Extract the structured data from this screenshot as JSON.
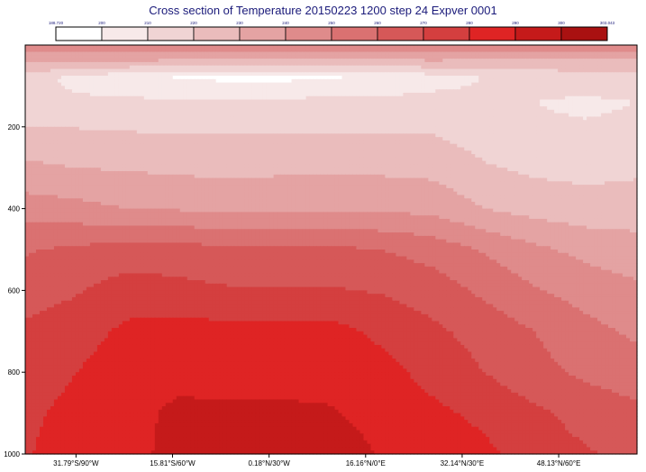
{
  "chart_data": {
    "type": "heatmap",
    "subtype": "filled-contour cross-section",
    "title": "Cross section of Temperature 20150223 1200 step 24 Expver 0001",
    "xlabel": "",
    "ylabel": "",
    "x_ticks": [
      "31.79°S/90°W",
      "15.81°S/60°W",
      "0.18°N/30°W",
      "16.16°N/0°E",
      "32.14°N/30°E",
      "48.13°N/60°E"
    ],
    "y_ticks": [
      200,
      400,
      600,
      800,
      1000
    ],
    "y_range": [
      0,
      1000
    ],
    "y_inverted": true,
    "colorbar": {
      "labels": [
        "188.720",
        "200",
        "210",
        "220",
        "230",
        "240",
        "250",
        "260",
        "270",
        "280",
        "290",
        "300",
        "303.043"
      ],
      "colors": [
        "#ffffff",
        "#f7e9e9",
        "#f0d4d4",
        "#eabcbc",
        "#e4a3a3",
        "#df8b8b",
        "#da7171",
        "#d65858",
        "#d43f3f",
        "#df2424",
        "#c51a1a",
        "#a91111"
      ]
    },
    "field_rows": [
      {
        "pressure": 10,
        "temps": [
          243,
          243,
          243,
          244,
          244,
          244,
          243,
          243,
          243,
          243,
          243,
          243,
          242
        ]
      },
      {
        "pressure": 40,
        "temps": [
          232,
          231,
          230,
          228,
          227,
          227,
          227,
          228,
          229,
          228,
          227,
          226,
          226
        ]
      },
      {
        "pressure": 80,
        "temps": [
          215,
          207,
          202,
          199,
          198,
          198,
          199,
          201,
          205,
          210,
          214,
          216,
          217
        ]
      },
      {
        "pressure": 140,
        "temps": [
          213,
          212,
          212,
          212,
          212,
          212,
          213,
          213,
          214,
          213,
          210,
          208,
          210
        ]
      },
      {
        "pressure": 220,
        "temps": [
          223,
          222,
          221,
          220,
          220,
          220,
          220,
          220,
          220,
          216,
          212,
          212,
          213
        ]
      },
      {
        "pressure": 300,
        "temps": [
          232,
          230,
          229,
          228,
          227,
          228,
          228,
          228,
          227,
          221,
          218,
          217,
          218
        ]
      },
      {
        "pressure": 400,
        "temps": [
          245,
          243,
          240,
          239,
          238,
          238,
          238,
          238,
          237,
          230,
          226,
          224,
          225
        ]
      },
      {
        "pressure": 500,
        "temps": [
          259,
          262,
          264,
          264,
          262,
          262,
          262,
          260,
          256,
          249,
          242,
          237,
          234
        ]
      },
      {
        "pressure": 600,
        "temps": [
          265,
          269,
          275,
          273,
          271,
          271,
          271,
          269,
          265,
          258,
          251,
          246,
          242
        ]
      },
      {
        "pressure": 700,
        "temps": [
          272,
          276,
          282,
          284,
          283,
          283,
          283,
          278,
          272,
          266,
          260,
          253,
          248
        ]
      },
      {
        "pressure": 800,
        "temps": [
          274,
          280,
          285,
          287,
          286,
          286,
          286,
          283,
          277,
          270,
          263,
          258,
          255
        ]
      },
      {
        "pressure": 900,
        "temps": [
          278,
          283,
          287,
          292,
          292,
          292,
          291,
          286,
          282,
          278,
          272,
          266,
          262
        ]
      },
      {
        "pressure": 1000,
        "temps": [
          279,
          285,
          288,
          292,
          293,
          295,
          296,
          289,
          285,
          282,
          276,
          271,
          267
        ]
      }
    ]
  }
}
